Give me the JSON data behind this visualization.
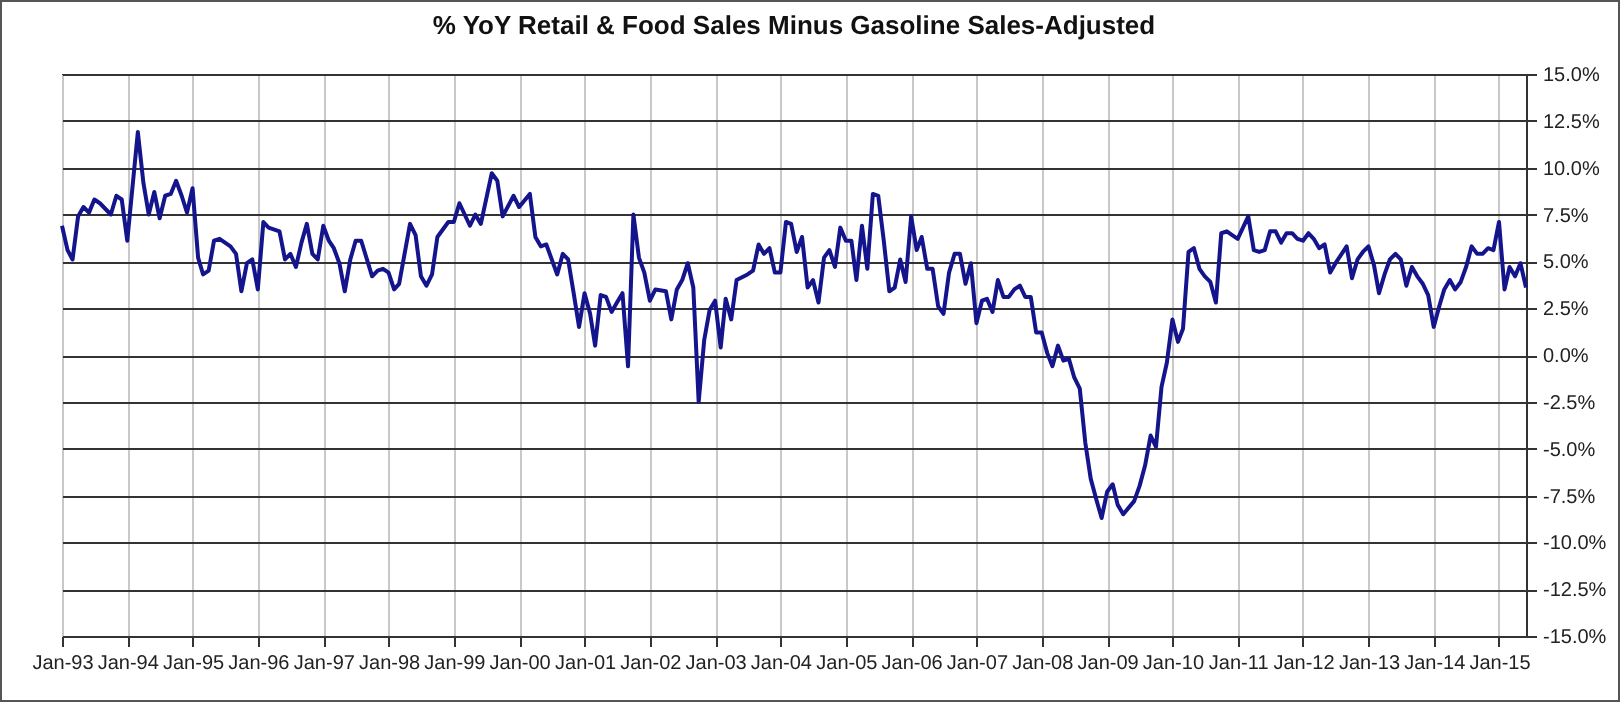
{
  "chart_data": {
    "type": "line",
    "title": "% YoY Retail & Food Sales Minus Gasoline Sales-Adjusted",
    "xlim": [
      "1993-01",
      "2015-06"
    ],
    "xticks": [
      {
        "value": "1993-01",
        "label": "Jan-93"
      },
      {
        "value": "1994-01",
        "label": "Jan-94"
      },
      {
        "value": "1995-01",
        "label": "Jan-95"
      },
      {
        "value": "1996-01",
        "label": "Jan-96"
      },
      {
        "value": "1997-01",
        "label": "Jan-97"
      },
      {
        "value": "1998-01",
        "label": "Jan-98"
      },
      {
        "value": "1999-01",
        "label": "Jan-99"
      },
      {
        "value": "2000-01",
        "label": "Jan-00"
      },
      {
        "value": "2001-01",
        "label": "Jan-01"
      },
      {
        "value": "2002-01",
        "label": "Jan-02"
      },
      {
        "value": "2003-01",
        "label": "Jan-03"
      },
      {
        "value": "2004-01",
        "label": "Jan-04"
      },
      {
        "value": "2005-01",
        "label": "Jan-05"
      },
      {
        "value": "2006-01",
        "label": "Jan-06"
      },
      {
        "value": "2007-01",
        "label": "Jan-07"
      },
      {
        "value": "2008-01",
        "label": "Jan-08"
      },
      {
        "value": "2009-01",
        "label": "Jan-09"
      },
      {
        "value": "2010-01",
        "label": "Jan-10"
      },
      {
        "value": "2011-01",
        "label": "Jan-11"
      },
      {
        "value": "2012-01",
        "label": "Jan-12"
      },
      {
        "value": "2013-01",
        "label": "Jan-13"
      },
      {
        "value": "2014-01",
        "label": "Jan-14"
      },
      {
        "value": "2015-01",
        "label": "Jan-15"
      }
    ],
    "ylim": [
      -15,
      15
    ],
    "yticks": [
      {
        "value": -15,
        "label": "-15.0%"
      },
      {
        "value": -12.5,
        "label": "-12.5%"
      },
      {
        "value": -10,
        "label": "-10.0%"
      },
      {
        "value": -7.5,
        "label": "-7.5%"
      },
      {
        "value": -5,
        "label": "-5.0%"
      },
      {
        "value": -2.5,
        "label": "-2.5%"
      },
      {
        "value": 0,
        "label": "0.0%"
      },
      {
        "value": 2.5,
        "label": "2.5%"
      },
      {
        "value": 5,
        "label": "5.0%"
      },
      {
        "value": 7.5,
        "label": "7.5%"
      },
      {
        "value": 10,
        "label": "10.0%"
      },
      {
        "value": 12.5,
        "label": "12.5%"
      },
      {
        "value": 15,
        "label": "15.0%"
      }
    ],
    "grid": true,
    "x": [
      "1993-01",
      "1993-02",
      "1993-03",
      "1993-04",
      "1993-05",
      "1993-06",
      "1993-07",
      "1993-08",
      "1993-10",
      "1993-11",
      "1993-12",
      "1994-01",
      "1994-03",
      "1994-04",
      "1994-05",
      "1994-06",
      "1994-07",
      "1994-08",
      "1994-09",
      "1994-10",
      "1994-11",
      "1994-12",
      "1995-01",
      "1995-02",
      "1995-03",
      "1995-04",
      "1995-05",
      "1995-06",
      "1995-08",
      "1995-09",
      "1995-10",
      "1995-11",
      "1995-12",
      "1996-01",
      "1996-02",
      "1996-03",
      "1996-05",
      "1996-06",
      "1996-07",
      "1996-08",
      "1996-09",
      "1996-10",
      "1996-11",
      "1996-12",
      "1997-01",
      "1997-02",
      "1997-03",
      "1997-04",
      "1997-05",
      "1997-06",
      "1997-07",
      "1997-08",
      "1997-10",
      "1997-11",
      "1997-12",
      "1998-01",
      "1998-02",
      "1998-03",
      "1998-05",
      "1998-06",
      "1998-07",
      "1998-08",
      "1998-09",
      "1998-10",
      "1998-12",
      "1999-01",
      "1999-02",
      "1999-04",
      "1999-05",
      "1999-06",
      "1999-08",
      "1999-09",
      "1999-10",
      "1999-12",
      "2000-01",
      "2000-03",
      "2000-04",
      "2000-05",
      "2000-06",
      "2000-08",
      "2000-09",
      "2000-10",
      "2000-11",
      "2000-12",
      "2001-01",
      "2001-02",
      "2001-03",
      "2001-04",
      "2001-05",
      "2001-06",
      "2001-07",
      "2001-08",
      "2001-09",
      "2001-10",
      "2001-11",
      "2001-12",
      "2002-01",
      "2002-02",
      "2002-04",
      "2002-05",
      "2002-06",
      "2002-07",
      "2002-08",
      "2002-09",
      "2002-10",
      "2002-11",
      "2002-12",
      "2003-01",
      "2003-02",
      "2003-03",
      "2003-04",
      "2003-05",
      "2003-07",
      "2003-08",
      "2003-09",
      "2003-10",
      "2003-11",
      "2003-12",
      "2004-01",
      "2004-02",
      "2004-03",
      "2004-04",
      "2004-05",
      "2004-06",
      "2004-07",
      "2004-08",
      "2004-09",
      "2004-10",
      "2004-11",
      "2004-12",
      "2005-01",
      "2005-02",
      "2005-03",
      "2005-04",
      "2005-05",
      "2005-06",
      "2005-07",
      "2005-08",
      "2005-09",
      "2005-10",
      "2005-11",
      "2005-12",
      "2006-01",
      "2006-02",
      "2006-03",
      "2006-04",
      "2006-05",
      "2006-06",
      "2006-07",
      "2006-08",
      "2006-09",
      "2006-10",
      "2006-11",
      "2006-12",
      "2007-01",
      "2007-02",
      "2007-03",
      "2007-04",
      "2007-05",
      "2007-06",
      "2007-07",
      "2007-08",
      "2007-09",
      "2007-10",
      "2007-11",
      "2007-12",
      "2008-01",
      "2008-02",
      "2008-03",
      "2008-04",
      "2008-05",
      "2008-06",
      "2008-07",
      "2008-08",
      "2008-09",
      "2008-10",
      "2008-11",
      "2008-12",
      "2009-01",
      "2009-02",
      "2009-03",
      "2009-04",
      "2009-06",
      "2009-07",
      "2009-08",
      "2009-09",
      "2009-10",
      "2009-11",
      "2009-12",
      "2010-01",
      "2010-02",
      "2010-03",
      "2010-04",
      "2010-05",
      "2010-06",
      "2010-07",
      "2010-08",
      "2010-09",
      "2010-10",
      "2010-11",
      "2010-12",
      "2011-01",
      "2011-03",
      "2011-04",
      "2011-05",
      "2011-06",
      "2011-07",
      "2011-08",
      "2011-09",
      "2011-10",
      "2011-11",
      "2011-12",
      "2012-01",
      "2012-02",
      "2012-03",
      "2012-04",
      "2012-05",
      "2012-06",
      "2012-07",
      "2012-09",
      "2012-10",
      "2012-11",
      "2012-12",
      "2013-01",
      "2013-02",
      "2013-03",
      "2013-04",
      "2013-05",
      "2013-06",
      "2013-07",
      "2013-08",
      "2013-09",
      "2013-10",
      "2013-11",
      "2013-12",
      "2014-01",
      "2014-02",
      "2014-03",
      "2014-04",
      "2014-05",
      "2014-06",
      "2014-07",
      "2014-08",
      "2014-09",
      "2014-10",
      "2014-11",
      "2014-12",
      "2015-01",
      "2015-02",
      "2015-03",
      "2015-04",
      "2015-05",
      "2015-06"
    ],
    "series": [
      {
        "color": "#14148c",
        "values": [
          6.9,
          5.6,
          5.1,
          7.4,
          7.9,
          7.6,
          8.3,
          8.1,
          7.5,
          8.5,
          8.3,
          6.1,
          11.9,
          9.2,
          7.5,
          8.7,
          7.3,
          8.5,
          8.6,
          9.3,
          8.5,
          7.6,
          8.9,
          5.2,
          4.3,
          4.5,
          6.1,
          6.2,
          5.8,
          5.4,
          3.4,
          4.9,
          5.1,
          3.5,
          7.1,
          6.8,
          6.6,
          5.1,
          5.4,
          4.7,
          6.0,
          7.0,
          5.4,
          5.1,
          6.9,
          6.1,
          5.7,
          4.9,
          3.4,
          5.1,
          6.1,
          6.1,
          4.2,
          4.5,
          4.6,
          4.4,
          3.5,
          3.8,
          7.0,
          6.4,
          4.2,
          3.7,
          4.3,
          6.3,
          7.1,
          7.1,
          8.1,
          6.9,
          7.5,
          7.0,
          9.7,
          9.3,
          7.4,
          8.5,
          7.9,
          8.6,
          6.3,
          5.8,
          5.9,
          4.3,
          5.4,
          5.1,
          3.3,
          1.5,
          3.3,
          2.2,
          0.5,
          3.2,
          3.1,
          2.3,
          2.8,
          3.3,
          -0.6,
          7.5,
          5.2,
          4.4,
          2.9,
          3.5,
          3.4,
          1.9,
          3.5,
          4.0,
          4.9,
          3.6,
          -2.5,
          0.8,
          2.4,
          2.9,
          0.4,
          3.0,
          1.9,
          4.0,
          4.3,
          4.5,
          5.9,
          5.4,
          5.7,
          4.4,
          4.4,
          7.1,
          7.0,
          5.5,
          6.3,
          3.6,
          4.0,
          2.8,
          5.2,
          5.6,
          4.7,
          6.8,
          6.1,
          6.1,
          4.0,
          6.9,
          4.6,
          8.6,
          8.5,
          6.1,
          3.4,
          3.6,
          5.1,
          3.9,
          7.4,
          5.6,
          6.3,
          4.6,
          4.6,
          2.6,
          2.2,
          4.4,
          5.4,
          5.4,
          3.8,
          4.9,
          1.7,
          2.9,
          3.0,
          2.3,
          4.0,
          3.1,
          3.1,
          3.5,
          3.7,
          3.1,
          3.1,
          1.2,
          1.2,
          0.1,
          -0.6,
          0.5,
          -0.3,
          -0.2,
          -1.2,
          -1.8,
          -4.7,
          -6.6,
          -7.7,
          -8.7,
          -7.3,
          -6.9,
          -8.0,
          -8.5,
          -7.8,
          -7.0,
          -5.9,
          -4.3,
          -4.9,
          -1.7,
          -0.4,
          1.9,
          0.7,
          1.4,
          5.5,
          5.7,
          4.6,
          4.2,
          3.9,
          2.8,
          6.5,
          6.6,
          6.4,
          6.2,
          7.4,
          5.6,
          5.5,
          5.6,
          6.6,
          6.6,
          6.0,
          6.5,
          6.5,
          6.2,
          6.1,
          6.5,
          6.2,
          5.7,
          5.9,
          4.4,
          4.9,
          5.8,
          4.1,
          5.1,
          5.5,
          5.8,
          4.8,
          3.3,
          4.3,
          5.1,
          5.4,
          5.1,
          3.7,
          4.7,
          4.2,
          3.8,
          3.2,
          1.5,
          2.6,
          3.5,
          4.0,
          3.5,
          3.9,
          4.7,
          5.8,
          5.4,
          5.4,
          5.7,
          5.6,
          7.1,
          3.5,
          4.7,
          4.2,
          4.9,
          3.6
        ]
      }
    ]
  }
}
